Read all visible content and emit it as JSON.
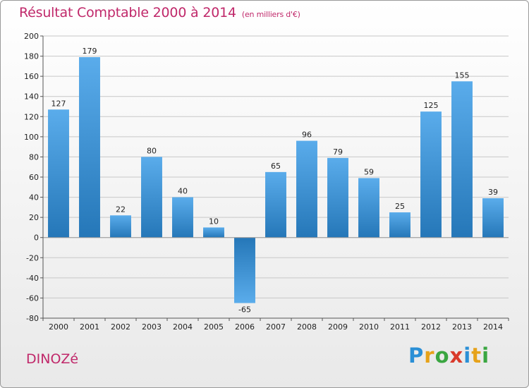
{
  "header": {
    "title": "Résultat Comptable 2000 à 2014",
    "subtitle": "(en milliers d'€)"
  },
  "footer": {
    "city": "DINOZé",
    "logo": "Proxiti",
    "logo_letters": [
      {
        "ch": "P",
        "color": "#2a8fd6"
      },
      {
        "ch": "r",
        "color": "#e6a21a"
      },
      {
        "ch": "o",
        "color": "#3aa641"
      },
      {
        "ch": "x",
        "color": "#d93a2b"
      },
      {
        "ch": "i",
        "color": "#2a8fd6"
      },
      {
        "ch": "t",
        "color": "#e6a21a"
      },
      {
        "ch": "i",
        "color": "#3aa641"
      }
    ]
  },
  "chart_data": {
    "type": "bar",
    "title": "Résultat Comptable 2000 à 2014",
    "subtitle": "(en milliers d'€)",
    "xlabel": "",
    "ylabel": "",
    "categories": [
      "2000",
      "2001",
      "2002",
      "2003",
      "2004",
      "2005",
      "2006",
      "2007",
      "2008",
      "2009",
      "2010",
      "2011",
      "2012",
      "2013",
      "2014"
    ],
    "values": [
      127,
      179,
      22,
      80,
      40,
      10,
      -65,
      65,
      96,
      79,
      59,
      25,
      125,
      155,
      39
    ],
    "ylim": [
      -80,
      200
    ],
    "yticks": [
      -80,
      -60,
      -40,
      -20,
      0,
      20,
      40,
      60,
      80,
      100,
      120,
      140,
      160,
      180,
      200
    ],
    "grid": true,
    "colors": {
      "bar_light": "#5aaceb",
      "bar_dark": "#2577b8",
      "grid": "#c8c8c8",
      "axis": "#555555"
    }
  }
}
